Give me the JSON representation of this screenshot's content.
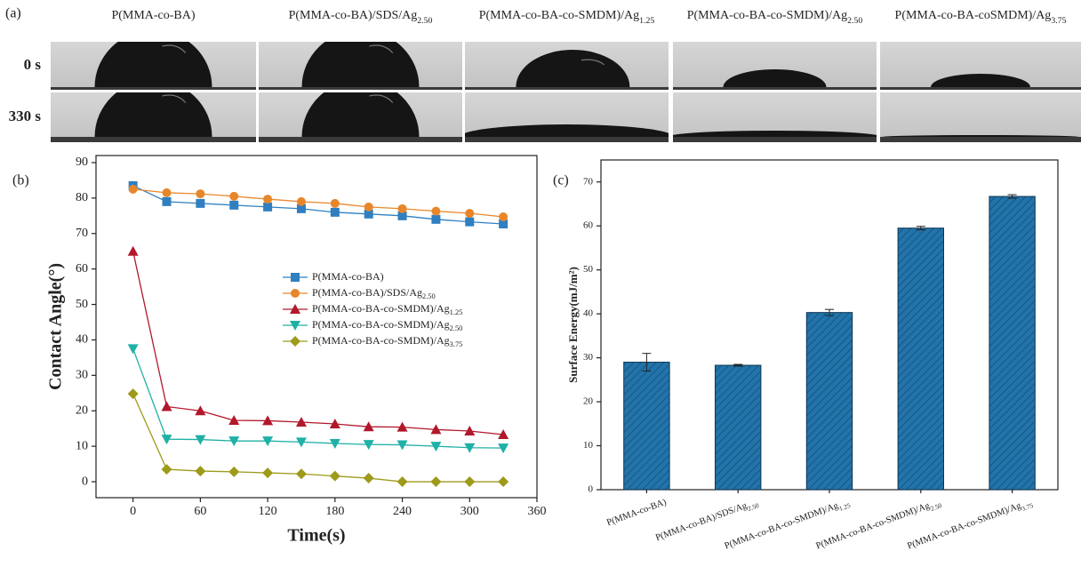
{
  "panel_a": {
    "label": "(a)",
    "columns": [
      "P(MMA-co-BA)",
      "P(MMA-co-BA)/SDS/Ag2.50",
      "P(MMA-co-BA-co-SMDM)/Ag1.25",
      "P(MMA-co-BA-co-SMDM)/Ag2.50",
      "P(MMA-co-BA-coSMDM)/Ag3.75"
    ],
    "rows": [
      "0 s",
      "330 s"
    ]
  },
  "chart_data": [
    {
      "type": "line",
      "label": "(b)",
      "x_label": "Time(s)",
      "y_label": "Contact Angle(°)",
      "x": [
        0,
        30,
        60,
        90,
        120,
        150,
        180,
        210,
        240,
        270,
        300,
        330
      ],
      "xlim": [
        -33,
        360
      ],
      "ylim": [
        -4.5,
        92
      ],
      "xticks": [
        0,
        60,
        120,
        180,
        240,
        300,
        360
      ],
      "yticks": [
        0,
        10,
        20,
        30,
        40,
        50,
        60,
        70,
        80,
        90
      ],
      "series": [
        {
          "name": "P(MMA-co-BA)",
          "color": "#2f7fc1",
          "marker": "square",
          "values": [
            83.5,
            79,
            78.5,
            78,
            77.5,
            77,
            76,
            75.5,
            75,
            74,
            73.3,
            72.7
          ]
        },
        {
          "name": "P(MMA-co-BA)/SDS/Ag2.50",
          "color": "#e8862a",
          "marker": "circle",
          "values": [
            82.5,
            81.5,
            81.2,
            80.5,
            79.7,
            79,
            78.5,
            77.5,
            77,
            76.3,
            75.7,
            74.7
          ]
        },
        {
          "name": "P(MMA-co-BA-co-SMDM)/Ag1.25",
          "color": "#b2182b",
          "marker": "triangle-up",
          "values": [
            65,
            21.2,
            20,
            17.3,
            17.2,
            16.8,
            16.3,
            15.5,
            15.4,
            14.7,
            14.3,
            13.3
          ]
        },
        {
          "name": "P(MMA-co-BA-co-SMDM)/Ag2.50",
          "color": "#1fb0a6",
          "marker": "triangle-down",
          "values": [
            37.5,
            12,
            11.9,
            11.5,
            11.5,
            11.2,
            10.8,
            10.5,
            10.4,
            10,
            9.6,
            9.5
          ]
        },
        {
          "name": "P(MMA-co-BA-co-SMDM)/Ag3.75",
          "color": "#9e9a1a",
          "marker": "diamond",
          "values": [
            24.8,
            3.5,
            3,
            2.8,
            2.5,
            2.2,
            1.6,
            1,
            0,
            0,
            0,
            0
          ]
        }
      ]
    },
    {
      "type": "bar",
      "label": "(c)",
      "y_label": "Surface Energy(mJ/m²)",
      "categories": [
        "P(MMA-co-BA)",
        "P(MMA-co-BA)/SDS/Ag2.50",
        "P(MMA-co-BA-co-SMDM)/Ag1.25",
        "P(MMA-co-BA-co-SMDM)/Ag2.50",
        "P(MMA-co-BA-co-SMDM)/Ag3.75"
      ],
      "values": [
        29,
        28.3,
        40.3,
        59.5,
        66.7
      ],
      "errors": [
        2,
        0.2,
        0.7,
        0.4,
        0.4
      ],
      "color": "#2274aa",
      "ylim": [
        0,
        75
      ],
      "yticks": [
        0,
        10,
        20,
        30,
        40,
        50,
        60,
        70
      ]
    }
  ]
}
